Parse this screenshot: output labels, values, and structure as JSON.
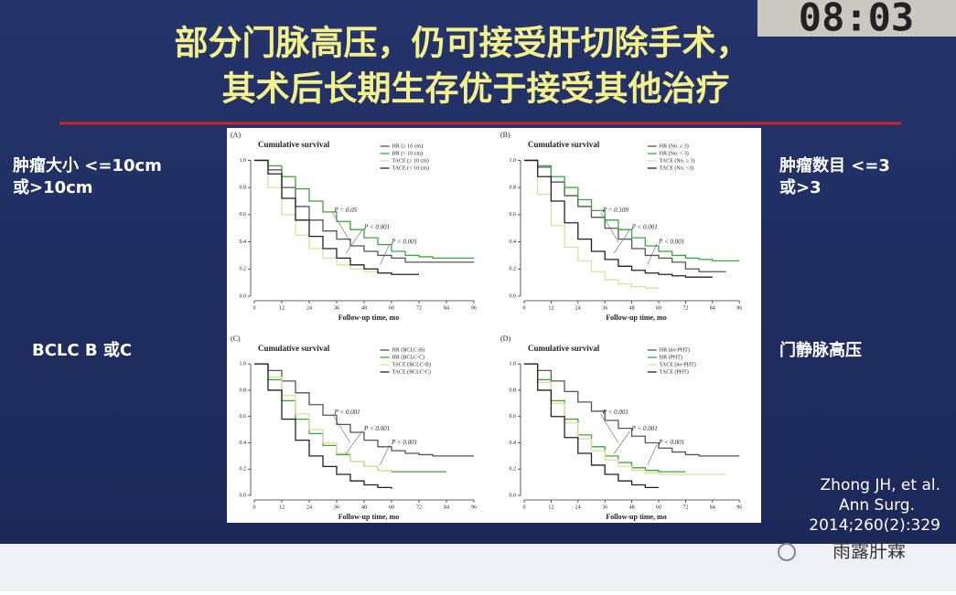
{
  "header": {
    "title": [
      "部分门脉高压，仍可接受肝切除手术，",
      "其术后长期生存优于接受其他治疗"
    ],
    "clock": "08:03"
  },
  "left_labels": [
    [
      "肿瘤大小 <=10cm",
      "或>10cm"
    ],
    [
      "BCLC B 或C"
    ]
  ],
  "right_labels": [
    [
      "肿瘤数目 <=3",
      "或>3"
    ],
    [
      "门静脉高压"
    ]
  ],
  "citation": [
    "Zhong JH, et al.",
    "Ann Surg.",
    "2014;260(2):329"
  ],
  "watermark": "雨露肝霖",
  "figure": {
    "panels": [
      {
        "label": "(A)",
        "title": "Cumulative survival",
        "xlabel": "Follow-up time, mo",
        "xlim": [
          0,
          100
        ],
        "ylim": [
          0,
          1.05
        ],
        "xticks": [
          0,
          12,
          24,
          36,
          48,
          60,
          72,
          84,
          96
        ],
        "yticks": [
          {
            "value": 0,
            "label": "0.0"
          },
          {
            "value": 0.2,
            "label": "0.2"
          },
          {
            "value": 0.4,
            "label": "0.4"
          },
          {
            "value": 0.6,
            "label": "0.6"
          },
          {
            "value": 0.8,
            "label": "0.8"
          },
          {
            "value": 1,
            "label": "1.0"
          }
        ],
        "x": [
          0,
          6,
          12,
          18,
          24,
          30,
          36,
          42,
          48,
          54,
          60,
          66,
          72,
          78,
          84,
          90,
          96
        ],
        "series": [
          {
            "name": "HR (≥ 10 cm)",
            "color": "#555555",
            "values": [
              1,
              0.93,
              0.8,
              0.66,
              0.56,
              0.48,
              0.42,
              0.37,
              0.33,
              0.3,
              0.28,
              0.25,
              0.25,
              0.25,
              0.25,
              0.25,
              0.25
            ]
          },
          {
            "name": "HR (< 10 cm)",
            "color": "#3aa83a",
            "values": [
              1,
              0.96,
              0.88,
              0.79,
              0.7,
              0.62,
              0.55,
              0.49,
              0.43,
              0.38,
              0.33,
              0.3,
              0.29,
              0.28,
              0.28,
              0.28,
              0.28
            ]
          },
          {
            "name": "TACE (≥ 10 cm)",
            "color": "#e4dc9c",
            "values": [
              1,
              0.8,
              0.6,
              0.45,
              0.35,
              0.28,
              0.23,
              0.2,
              0.18,
              0.17,
              0.17,
              null,
              null,
              null,
              null,
              null,
              null
            ]
          },
          {
            "name": "TACE (< 10 cm)",
            "color": "#222222",
            "values": [
              1,
              0.9,
              0.72,
              0.56,
              0.44,
              0.35,
              0.28,
              0.23,
              0.2,
              0.17,
              0.16,
              0.16,
              0.16,
              null,
              null,
              null,
              null
            ]
          }
        ],
        "annotations": [
          "P = 0.05",
          "P < 0.001",
          "P < 0.001"
        ]
      },
      {
        "label": "(B)",
        "title": "Cumulative survival",
        "xlabel": "Follow-up time, mo",
        "xlim": [
          0,
          100
        ],
        "ylim": [
          0,
          1.05
        ],
        "xticks": [
          0,
          12,
          24,
          36,
          48,
          60,
          72,
          84,
          96
        ],
        "yticks": [
          {
            "value": 0,
            "label": "0.0"
          },
          {
            "value": 0.2,
            "label": "0.2"
          },
          {
            "value": 0.4,
            "label": "0.4"
          },
          {
            "value": 0.6,
            "label": "0.6"
          },
          {
            "value": 0.8,
            "label": "0.8"
          },
          {
            "value": 1,
            "label": "1.0"
          }
        ],
        "x": [
          0,
          6,
          12,
          18,
          24,
          30,
          36,
          42,
          48,
          54,
          60,
          66,
          72,
          78,
          84,
          90,
          96
        ],
        "series": [
          {
            "name": "HR (No. ≥ 3)",
            "color": "#555555",
            "values": [
              1,
              0.95,
              0.84,
              0.74,
              0.66,
              0.58,
              0.5,
              0.42,
              0.35,
              0.3,
              0.28,
              0.25,
              0.2,
              0.18,
              0.18,
              0.18,
              null
            ]
          },
          {
            "name": "HR (No. < 3)",
            "color": "#3aa83a",
            "values": [
              1,
              0.96,
              0.88,
              0.8,
              0.71,
              0.63,
              0.56,
              0.49,
              0.43,
              0.37,
              0.33,
              0.3,
              0.28,
              0.27,
              0.26,
              0.26,
              0.26
            ]
          },
          {
            "name": "TACE (No. ≥ 3)",
            "color": "#e4dc9c",
            "values": [
              1,
              0.75,
              0.52,
              0.36,
              0.26,
              0.18,
              0.12,
              0.09,
              0.07,
              0.06,
              0.06,
              null,
              null,
              null,
              null,
              null,
              null
            ]
          },
          {
            "name": "TACE (No. <3)",
            "color": "#222222",
            "values": [
              1,
              0.88,
              0.7,
              0.54,
              0.42,
              0.33,
              0.27,
              0.22,
              0.19,
              0.17,
              0.16,
              0.15,
              0.14,
              0.14,
              0.14,
              null,
              null
            ]
          }
        ],
        "annotations": [
          "P = 0.109",
          "P < 0.001",
          "P < 0.001"
        ]
      },
      {
        "label": "(C)",
        "title": "Cumulative survival",
        "xlabel": "Follow-up time, mo",
        "xlim": [
          0,
          100
        ],
        "ylim": [
          0,
          1.05
        ],
        "xticks": [
          0,
          12,
          24,
          36,
          48,
          60,
          72,
          84,
          96
        ],
        "yticks": [
          {
            "value": 0,
            "label": "0.0"
          },
          {
            "value": 0.2,
            "label": "0.2"
          },
          {
            "value": 0.4,
            "label": "0.4"
          },
          {
            "value": 0.6,
            "label": "0.6"
          },
          {
            "value": 0.8,
            "label": "0.8"
          },
          {
            "value": 1,
            "label": "1.0"
          }
        ],
        "x": [
          0,
          6,
          12,
          18,
          24,
          30,
          36,
          42,
          48,
          54,
          60,
          66,
          72,
          78,
          84,
          90,
          96
        ],
        "series": [
          {
            "name": "HR (BCLC-B)",
            "color": "#555555",
            "values": [
              1,
              0.95,
              0.87,
              0.78,
              0.69,
              0.61,
              0.54,
              0.48,
              0.42,
              0.37,
              0.34,
              0.32,
              0.31,
              0.3,
              0.3,
              0.3,
              0.3
            ]
          },
          {
            "name": "HR (BCLC-C)",
            "color": "#3aa83a",
            "values": [
              1,
              0.88,
              0.72,
              0.58,
              0.47,
              0.38,
              0.31,
              0.26,
              0.22,
              0.19,
              0.18,
              0.18,
              0.18,
              0.18,
              0.18,
              null,
              null
            ]
          },
          {
            "name": "TACE (BCLC-B)",
            "color": "#e4dc9c",
            "values": [
              1,
              0.9,
              0.76,
              0.62,
              0.5,
              0.4,
              0.32,
              0.26,
              0.22,
              0.19,
              0.18,
              null,
              null,
              null,
              null,
              null,
              null
            ]
          },
          {
            "name": "TACE (BCLC-C)",
            "color": "#222222",
            "values": [
              1,
              0.8,
              0.58,
              0.42,
              0.3,
              0.22,
              0.16,
              0.11,
              0.08,
              0.06,
              0.05,
              null,
              null,
              null,
              null,
              null,
              null
            ]
          }
        ],
        "annotations": [
          "P < 0.001",
          "P < 0.001",
          "P < 0.001"
        ]
      },
      {
        "label": "(D)",
        "title": "Cumulative survival",
        "xlabel": "Follow-up time, mo",
        "xlim": [
          0,
          100
        ],
        "ylim": [
          0,
          1.05
        ],
        "xticks": [
          0,
          12,
          24,
          36,
          48,
          60,
          72,
          84,
          96
        ],
        "yticks": [
          {
            "value": 0,
            "label": "0.0"
          },
          {
            "value": 0.2,
            "label": "0.2"
          },
          {
            "value": 0.4,
            "label": "0.4"
          },
          {
            "value": 0.6,
            "label": "0.6"
          },
          {
            "value": 0.8,
            "label": "0.8"
          },
          {
            "value": 1,
            "label": "1.0"
          }
        ],
        "x": [
          0,
          6,
          12,
          18,
          24,
          30,
          36,
          42,
          48,
          54,
          60,
          66,
          72,
          78,
          84,
          90,
          96
        ],
        "series": [
          {
            "name": "HR (no-PHT)",
            "color": "#555555",
            "values": [
              1,
              0.95,
              0.87,
              0.79,
              0.71,
              0.64,
              0.57,
              0.51,
              0.45,
              0.4,
              0.36,
              0.33,
              0.31,
              0.3,
              0.3,
              0.3,
              0.3
            ]
          },
          {
            "name": "HR (PHT)",
            "color": "#3aa83a",
            "values": [
              1,
              0.88,
              0.72,
              0.58,
              0.46,
              0.37,
              0.3,
              0.25,
              0.21,
              0.19,
              0.18,
              0.18,
              0.18,
              null,
              null,
              null,
              null
            ]
          },
          {
            "name": "TACE (no-PHT)",
            "color": "#e4dc9c",
            "values": [
              1,
              0.86,
              0.7,
              0.55,
              0.43,
              0.34,
              0.27,
              0.22,
              0.19,
              0.17,
              0.16,
              0.16,
              0.16,
              0.16,
              0.16,
              0.16,
              null
            ]
          },
          {
            "name": "TACE (PHT)",
            "color": "#222222",
            "values": [
              1,
              0.8,
              0.6,
              0.44,
              0.32,
              0.23,
              0.16,
              0.11,
              0.08,
              0.06,
              0.06,
              null,
              null,
              null,
              null,
              null,
              null
            ]
          }
        ],
        "annotations": [
          "P < 0.001",
          "P < 0.001",
          "P < 0.001"
        ]
      }
    ]
  }
}
